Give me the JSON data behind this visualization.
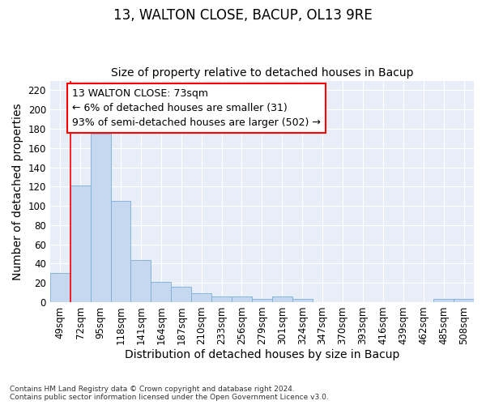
{
  "title": "13, WALTON CLOSE, BACUP, OL13 9RE",
  "subtitle": "Size of property relative to detached houses in Bacup",
  "xlabel": "Distribution of detached houses by size in Bacup",
  "ylabel": "Number of detached properties",
  "categories": [
    "49sqm",
    "72sqm",
    "95sqm",
    "118sqm",
    "141sqm",
    "164sqm",
    "187sqm",
    "210sqm",
    "233sqm",
    "256sqm",
    "279sqm",
    "301sqm",
    "324sqm",
    "347sqm",
    "370sqm",
    "393sqm",
    "416sqm",
    "439sqm",
    "462sqm",
    "485sqm",
    "508sqm"
  ],
  "values": [
    30,
    121,
    175,
    105,
    44,
    21,
    16,
    9,
    6,
    6,
    3,
    6,
    3,
    0,
    0,
    0,
    0,
    0,
    0,
    3,
    3
  ],
  "bar_color": "#c5d8f0",
  "bar_edge_color": "#7bafd4",
  "ylim": [
    0,
    230
  ],
  "yticks": [
    0,
    20,
    40,
    60,
    80,
    100,
    120,
    140,
    160,
    180,
    200,
    220
  ],
  "annotation_text_line1": "13 WALTON CLOSE: 73sqm",
  "annotation_text_line2": "← 6% of detached houses are smaller (31)",
  "annotation_text_line3": "93% of semi-detached houses are larger (502) →",
  "footer_line1": "Contains HM Land Registry data © Crown copyright and database right 2024.",
  "footer_line2": "Contains public sector information licensed under the Open Government Licence v3.0.",
  "bg_color": "#e8eef8",
  "title_fontsize": 12,
  "subtitle_fontsize": 10,
  "axis_label_fontsize": 10,
  "tick_fontsize": 8.5,
  "annotation_fontsize": 9
}
